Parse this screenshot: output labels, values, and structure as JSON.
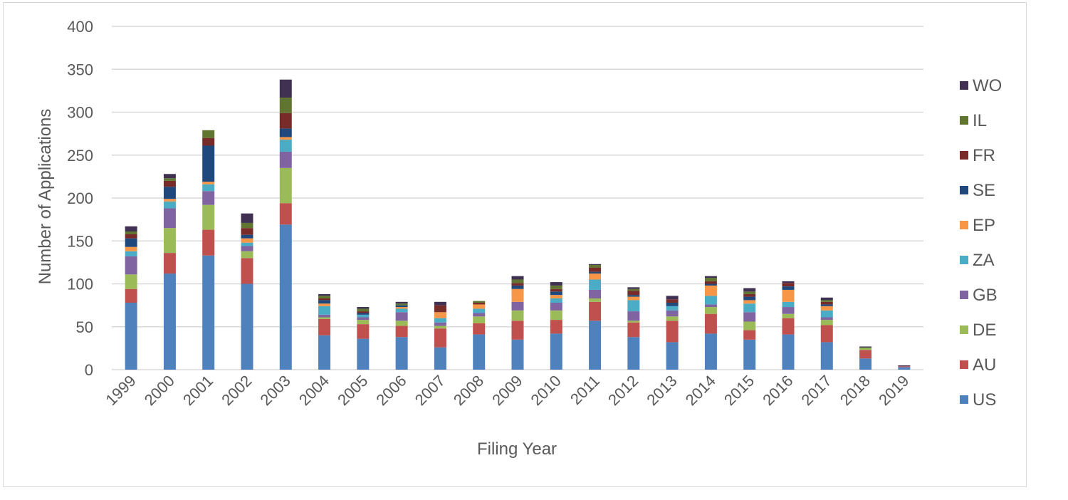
{
  "chart_data": {
    "type": "bar",
    "stacked": true,
    "title": "",
    "xlabel": "Filing Year",
    "ylabel": "Number of Applications",
    "ylim": [
      0,
      400
    ],
    "yticks": [
      0,
      50,
      100,
      150,
      200,
      250,
      300,
      350,
      400
    ],
    "grid": true,
    "legend_position": "right",
    "categories": [
      "1999",
      "2000",
      "2001",
      "2002",
      "2003",
      "2004",
      "2005",
      "2006",
      "2007",
      "2008",
      "2009",
      "2010",
      "2011",
      "2012",
      "2013",
      "2014",
      "2015",
      "2016",
      "2017",
      "2018",
      "2019"
    ],
    "series": [
      {
        "name": "US",
        "color": "#4f81bd",
        "values": [
          78,
          112,
          133,
          100,
          169,
          40,
          36,
          38,
          26,
          41,
          35,
          42,
          57,
          38,
          32,
          42,
          35,
          41,
          32,
          13,
          3
        ]
      },
      {
        "name": "AU",
        "color": "#c0504d",
        "values": [
          16,
          24,
          30,
          30,
          25,
          19,
          17,
          13,
          22,
          13,
          22,
          16,
          22,
          17,
          25,
          23,
          11,
          19,
          20,
          10,
          1
        ]
      },
      {
        "name": "DE",
        "color": "#9bbb59",
        "values": [
          17,
          29,
          29,
          8,
          41,
          2,
          5,
          6,
          3,
          8,
          12,
          11,
          4,
          2,
          5,
          8,
          10,
          5,
          6,
          2,
          0
        ]
      },
      {
        "name": "GB",
        "color": "#8064a2",
        "values": [
          21,
          23,
          16,
          6,
          19,
          3,
          3,
          10,
          4,
          4,
          10,
          9,
          10,
          11,
          7,
          3,
          11,
          8,
          3,
          0,
          0
        ]
      },
      {
        "name": "ZA",
        "color": "#4bacc6",
        "values": [
          6,
          8,
          8,
          4,
          14,
          10,
          3,
          4,
          5,
          5,
          0,
          5,
          12,
          13,
          5,
          10,
          10,
          6,
          8,
          0,
          0
        ]
      },
      {
        "name": "EP",
        "color": "#f79646",
        "values": [
          5,
          3,
          3,
          5,
          3,
          3,
          0,
          2,
          7,
          5,
          15,
          4,
          7,
          4,
          0,
          12,
          4,
          14,
          5,
          0,
          0
        ]
      },
      {
        "name": "SE",
        "color": "#1f497d",
        "values": [
          10,
          14,
          42,
          4,
          10,
          4,
          2,
          2,
          0,
          0,
          4,
          4,
          2,
          2,
          4,
          2,
          4,
          4,
          2,
          0,
          0
        ]
      },
      {
        "name": "FR",
        "color": "#772c2a",
        "values": [
          5,
          7,
          9,
          8,
          18,
          2,
          2,
          0,
          8,
          2,
          3,
          3,
          5,
          5,
          4,
          3,
          3,
          4,
          3,
          0,
          0
        ]
      },
      {
        "name": "IL",
        "color": "#5f7530",
        "values": [
          3,
          3,
          9,
          6,
          18,
          3,
          3,
          2,
          0,
          2,
          4,
          4,
          3,
          2,
          0,
          4,
          3,
          0,
          2,
          1,
          0
        ]
      },
      {
        "name": "WO",
        "color": "#403152",
        "values": [
          6,
          5,
          0,
          11,
          21,
          2,
          2,
          2,
          4,
          0,
          4,
          4,
          1,
          2,
          4,
          2,
          4,
          2,
          3,
          1,
          1
        ]
      }
    ]
  }
}
